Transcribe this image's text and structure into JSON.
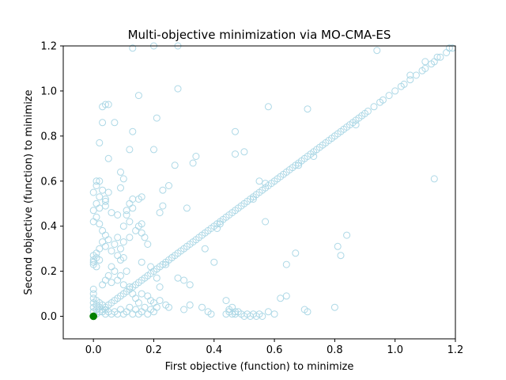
{
  "chart_data": {
    "type": "scatter",
    "title": "Multi-objective minimization via MO-CMA-ES",
    "xlabel": "First objective (function) to minimize",
    "ylabel": "Second objective (function) to minimize",
    "xlim": [
      -0.1,
      1.2
    ],
    "ylim": [
      -0.1,
      1.2
    ],
    "xticks": [
      0.0,
      0.2,
      0.4,
      0.6,
      0.8,
      1.0,
      1.2
    ],
    "xtick_labels": [
      "0.0",
      "0.2",
      "0.4",
      "0.6",
      "0.8",
      "1.0",
      "1.2"
    ],
    "yticks": [
      0.0,
      0.2,
      0.4,
      0.6,
      0.8,
      1.0,
      1.2
    ],
    "ytick_labels": [
      "0.0",
      "0.2",
      "0.4",
      "0.6",
      "0.8",
      "1.0",
      "1.2"
    ],
    "grid": false,
    "series": [
      {
        "marker": "hollow-circle",
        "color": "#add8e6",
        "points": [
          [
            0.0,
            0.0
          ],
          [
            0.01,
            0.01
          ],
          [
            0.02,
            0.02
          ],
          [
            0.03,
            0.03
          ],
          [
            0.04,
            0.04
          ],
          [
            0.05,
            0.05
          ],
          [
            0.06,
            0.06
          ],
          [
            0.07,
            0.07
          ],
          [
            0.08,
            0.08
          ],
          [
            0.09,
            0.09
          ],
          [
            0.1,
            0.1
          ],
          [
            0.11,
            0.11
          ],
          [
            0.12,
            0.12
          ],
          [
            0.13,
            0.13
          ],
          [
            0.14,
            0.14
          ],
          [
            0.15,
            0.15
          ],
          [
            0.16,
            0.16
          ],
          [
            0.17,
            0.17
          ],
          [
            0.18,
            0.18
          ],
          [
            0.19,
            0.19
          ],
          [
            0.2,
            0.2
          ],
          [
            0.21,
            0.21
          ],
          [
            0.22,
            0.22
          ],
          [
            0.23,
            0.23
          ],
          [
            0.24,
            0.24
          ],
          [
            0.25,
            0.25
          ],
          [
            0.26,
            0.26
          ],
          [
            0.27,
            0.27
          ],
          [
            0.28,
            0.28
          ],
          [
            0.29,
            0.29
          ],
          [
            0.3,
            0.3
          ],
          [
            0.31,
            0.31
          ],
          [
            0.32,
            0.32
          ],
          [
            0.33,
            0.33
          ],
          [
            0.34,
            0.34
          ],
          [
            0.35,
            0.35
          ],
          [
            0.36,
            0.36
          ],
          [
            0.37,
            0.37
          ],
          [
            0.38,
            0.38
          ],
          [
            0.39,
            0.39
          ],
          [
            0.4,
            0.4
          ],
          [
            0.41,
            0.41
          ],
          [
            0.42,
            0.42
          ],
          [
            0.43,
            0.43
          ],
          [
            0.44,
            0.44
          ],
          [
            0.45,
            0.45
          ],
          [
            0.46,
            0.46
          ],
          [
            0.47,
            0.47
          ],
          [
            0.48,
            0.48
          ],
          [
            0.49,
            0.49
          ],
          [
            0.5,
            0.5
          ],
          [
            0.51,
            0.51
          ],
          [
            0.52,
            0.52
          ],
          [
            0.53,
            0.53
          ],
          [
            0.54,
            0.54
          ],
          [
            0.55,
            0.55
          ],
          [
            0.56,
            0.56
          ],
          [
            0.57,
            0.57
          ],
          [
            0.58,
            0.58
          ],
          [
            0.59,
            0.59
          ],
          [
            0.6,
            0.6
          ],
          [
            0.61,
            0.61
          ],
          [
            0.62,
            0.62
          ],
          [
            0.63,
            0.63
          ],
          [
            0.64,
            0.64
          ],
          [
            0.65,
            0.65
          ],
          [
            0.66,
            0.66
          ],
          [
            0.67,
            0.67
          ],
          [
            0.68,
            0.68
          ],
          [
            0.69,
            0.69
          ],
          [
            0.7,
            0.7
          ],
          [
            0.71,
            0.71
          ],
          [
            0.72,
            0.72
          ],
          [
            0.73,
            0.73
          ],
          [
            0.74,
            0.74
          ],
          [
            0.75,
            0.75
          ],
          [
            0.76,
            0.76
          ],
          [
            0.77,
            0.77
          ],
          [
            0.78,
            0.78
          ],
          [
            0.79,
            0.79
          ],
          [
            0.8,
            0.8
          ],
          [
            0.81,
            0.81
          ],
          [
            0.82,
            0.82
          ],
          [
            0.83,
            0.83
          ],
          [
            0.84,
            0.84
          ],
          [
            0.85,
            0.85
          ],
          [
            0.86,
            0.86
          ],
          [
            0.87,
            0.87
          ],
          [
            0.88,
            0.88
          ],
          [
            0.89,
            0.89
          ],
          [
            0.9,
            0.9
          ],
          [
            0.91,
            0.91
          ],
          [
            0.93,
            0.93
          ],
          [
            0.95,
            0.95
          ],
          [
            0.96,
            0.96
          ],
          [
            0.98,
            0.98
          ],
          [
            1.0,
            1.0
          ],
          [
            1.02,
            1.02
          ],
          [
            1.03,
            1.03
          ],
          [
            1.05,
            1.05
          ],
          [
            1.07,
            1.07
          ],
          [
            1.09,
            1.09
          ],
          [
            1.1,
            1.1
          ],
          [
            1.12,
            1.12
          ],
          [
            1.13,
            1.13
          ],
          [
            1.15,
            1.15
          ],
          [
            1.17,
            1.17
          ],
          [
            1.19,
            1.19
          ],
          [
            0.0,
            0.24
          ],
          [
            0.0,
            0.25
          ],
          [
            0.01,
            0.26
          ],
          [
            0.0,
            0.23
          ],
          [
            0.01,
            0.22
          ],
          [
            0.02,
            0.25
          ],
          [
            0.0,
            0.27
          ],
          [
            0.01,
            0.28
          ],
          [
            0.0,
            0.02
          ],
          [
            0.0,
            0.04
          ],
          [
            0.0,
            0.06
          ],
          [
            0.0,
            0.08
          ],
          [
            0.0,
            0.1
          ],
          [
            0.0,
            0.12
          ],
          [
            0.01,
            0.03
          ],
          [
            0.01,
            0.05
          ],
          [
            0.01,
            0.07
          ],
          [
            0.02,
            0.04
          ],
          [
            0.02,
            0.06
          ],
          [
            0.03,
            0.02
          ],
          [
            0.03,
            0.05
          ],
          [
            0.04,
            0.01
          ],
          [
            0.04,
            0.03
          ],
          [
            0.05,
            0.02
          ],
          [
            0.06,
            0.01
          ],
          [
            0.07,
            0.02
          ],
          [
            0.08,
            0.01
          ],
          [
            0.09,
            0.03
          ],
          [
            0.1,
            0.01
          ],
          [
            0.11,
            0.02
          ],
          [
            0.12,
            0.04
          ],
          [
            0.13,
            0.01
          ],
          [
            0.14,
            0.03
          ],
          [
            0.15,
            0.01
          ],
          [
            0.16,
            0.02
          ],
          [
            0.17,
            0.04
          ],
          [
            0.18,
            0.01
          ],
          [
            0.19,
            0.03
          ],
          [
            0.2,
            0.02
          ],
          [
            0.21,
            0.04
          ],
          [
            0.24,
            0.05
          ],
          [
            0.25,
            0.04
          ],
          [
            0.3,
            0.03
          ],
          [
            0.32,
            0.05
          ],
          [
            0.0,
            0.42
          ],
          [
            0.01,
            0.44
          ],
          [
            0.0,
            0.47
          ],
          [
            0.01,
            0.5
          ],
          [
            0.02,
            0.48
          ],
          [
            0.0,
            0.55
          ],
          [
            0.01,
            0.58
          ],
          [
            0.02,
            0.6
          ],
          [
            0.01,
            0.6
          ],
          [
            0.02,
            0.53
          ],
          [
            0.03,
            0.56
          ],
          [
            0.04,
            0.52
          ],
          [
            0.05,
            0.55
          ],
          [
            0.02,
            0.41
          ],
          [
            0.03,
            0.38
          ],
          [
            0.04,
            0.36
          ],
          [
            0.05,
            0.34
          ],
          [
            0.03,
            0.33
          ],
          [
            0.04,
            0.31
          ],
          [
            0.02,
            0.3
          ],
          [
            0.06,
            0.29
          ],
          [
            0.07,
            0.32
          ],
          [
            0.08,
            0.27
          ],
          [
            0.09,
            0.25
          ],
          [
            0.1,
            0.26
          ],
          [
            0.08,
            0.35
          ],
          [
            0.1,
            0.4
          ],
          [
            0.12,
            0.42
          ],
          [
            0.11,
            0.45
          ],
          [
            0.13,
            0.48
          ],
          [
            0.14,
            0.38
          ],
          [
            0.15,
            0.4
          ],
          [
            0.16,
            0.37
          ],
          [
            0.17,
            0.35
          ],
          [
            0.12,
            0.35
          ],
          [
            0.1,
            0.33
          ],
          [
            0.09,
            0.3
          ],
          [
            0.07,
            0.2
          ],
          [
            0.06,
            0.22
          ],
          [
            0.05,
            0.18
          ],
          [
            0.04,
            0.16
          ],
          [
            0.03,
            0.14
          ],
          [
            0.06,
            0.15
          ],
          [
            0.08,
            0.16
          ],
          [
            0.09,
            0.18
          ],
          [
            0.11,
            0.2
          ],
          [
            0.1,
            0.14
          ],
          [
            0.12,
            0.13
          ],
          [
            0.13,
            0.1
          ],
          [
            0.14,
            0.08
          ],
          [
            0.15,
            0.06
          ],
          [
            0.16,
            0.1
          ],
          [
            0.18,
            0.09
          ],
          [
            0.19,
            0.07
          ],
          [
            0.2,
            0.06
          ],
          [
            0.22,
            0.07
          ],
          [
            0.02,
            0.77
          ],
          [
            0.03,
            0.86
          ],
          [
            0.03,
            0.93
          ],
          [
            0.04,
            0.94
          ],
          [
            0.05,
            0.94
          ],
          [
            0.07,
            0.86
          ],
          [
            0.05,
            0.7
          ],
          [
            0.04,
            0.51
          ],
          [
            0.04,
            0.49
          ],
          [
            0.09,
            0.64
          ],
          [
            0.1,
            0.61
          ],
          [
            0.09,
            0.57
          ],
          [
            0.06,
            0.46
          ],
          [
            0.08,
            0.45
          ],
          [
            0.11,
            0.47
          ],
          [
            0.12,
            0.5
          ],
          [
            0.13,
            0.52
          ],
          [
            0.15,
            0.52
          ],
          [
            0.16,
            0.53
          ],
          [
            0.12,
            0.74
          ],
          [
            0.13,
            0.82
          ],
          [
            0.15,
            0.98
          ],
          [
            0.21,
            0.88
          ],
          [
            0.2,
            0.74
          ],
          [
            0.23,
            0.56
          ],
          [
            0.25,
            0.58
          ],
          [
            0.23,
            0.49
          ],
          [
            0.22,
            0.46
          ],
          [
            0.16,
            0.41
          ],
          [
            0.18,
            0.32
          ],
          [
            0.19,
            0.22
          ],
          [
            0.16,
            0.24
          ],
          [
            0.21,
            0.17
          ],
          [
            0.22,
            0.13
          ],
          [
            0.28,
            0.17
          ],
          [
            0.3,
            0.16
          ],
          [
            0.32,
            0.14
          ],
          [
            0.31,
            0.48
          ],
          [
            0.33,
            0.68
          ],
          [
            0.34,
            0.71
          ],
          [
            0.27,
            0.67
          ],
          [
            0.28,
            1.01
          ],
          [
            0.2,
            1.2
          ],
          [
            0.28,
            1.2
          ],
          [
            0.13,
            1.19
          ],
          [
            0.4,
            0.24
          ],
          [
            0.37,
            0.3
          ],
          [
            0.36,
            0.04
          ],
          [
            0.38,
            0.02
          ],
          [
            0.39,
            0.01
          ],
          [
            0.44,
            0.01
          ],
          [
            0.45,
            0.02
          ],
          [
            0.46,
            0.01
          ],
          [
            0.47,
            0.01
          ],
          [
            0.48,
            0.02
          ],
          [
            0.49,
            0.01
          ],
          [
            0.5,
            0.0
          ],
          [
            0.51,
            0.01
          ],
          [
            0.52,
            0.0
          ],
          [
            0.53,
            0.01
          ],
          [
            0.54,
            0.0
          ],
          [
            0.55,
            0.01
          ],
          [
            0.56,
            0.0
          ],
          [
            0.58,
            0.02
          ],
          [
            0.6,
            0.01
          ],
          [
            0.44,
            0.07
          ],
          [
            0.47,
            0.02
          ],
          [
            0.45,
            0.03
          ],
          [
            0.46,
            0.04
          ],
          [
            0.47,
            0.72
          ],
          [
            0.47,
            0.82
          ],
          [
            0.5,
            0.73
          ],
          [
            0.58,
            0.93
          ],
          [
            0.55,
            0.6
          ],
          [
            0.57,
            0.59
          ],
          [
            0.53,
            0.52
          ],
          [
            0.57,
            0.42
          ],
          [
            0.62,
            0.08
          ],
          [
            0.64,
            0.23
          ],
          [
            0.64,
            0.09
          ],
          [
            0.67,
            0.28
          ],
          [
            0.7,
            0.03
          ],
          [
            0.71,
            0.92
          ],
          [
            0.71,
            0.02
          ],
          [
            0.8,
            0.04
          ],
          [
            0.81,
            0.31
          ],
          [
            0.82,
            0.27
          ],
          [
            0.84,
            0.36
          ],
          [
            0.87,
            0.85
          ],
          [
            0.94,
            1.18
          ],
          [
            1.13,
            0.61
          ],
          [
            1.05,
            1.07
          ],
          [
            1.1,
            1.13
          ],
          [
            1.14,
            1.15
          ],
          [
            1.18,
            1.19
          ],
          [
            0.73,
            0.71
          ],
          [
            0.68,
            0.67
          ],
          [
            0.42,
            0.41
          ],
          [
            0.41,
            0.39
          ],
          [
            0.26,
            0.26
          ],
          [
            0.24,
            0.23
          ]
        ]
      },
      {
        "marker": "filled-circle",
        "color": "#008000",
        "points": [
          [
            0.0,
            0.0
          ],
          [
            0.0,
            0.001
          ],
          [
            0.001,
            0.0
          ],
          [
            0.0,
            -0.001
          ],
          [
            -0.001,
            0.0
          ]
        ]
      }
    ]
  }
}
